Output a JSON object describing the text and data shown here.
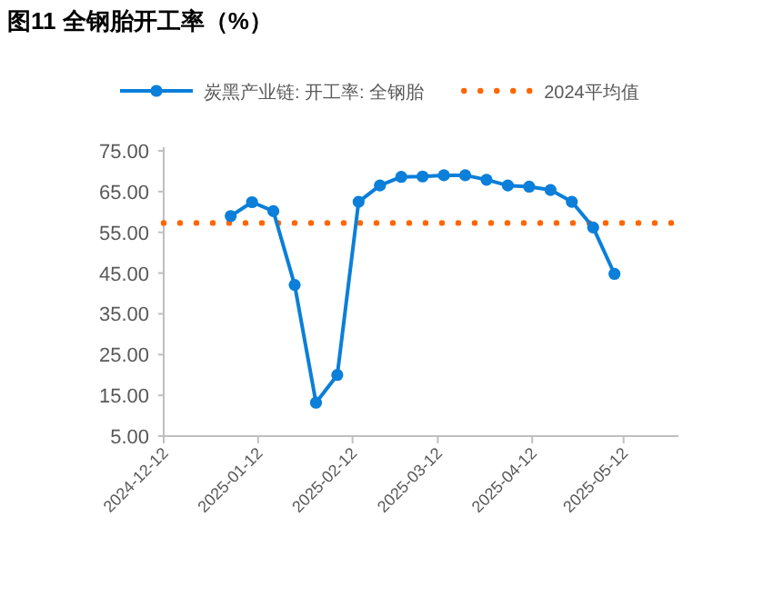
{
  "chart_data": {
    "type": "line",
    "title": "图11 全钢胎开工率（%）",
    "x": [
      "2025-01-03",
      "2025-01-10",
      "2025-01-17",
      "2025-01-24",
      "2025-01-31",
      "2025-02-07",
      "2025-02-14",
      "2025-02-21",
      "2025-02-28",
      "2025-03-07",
      "2025-03-14",
      "2025-03-21",
      "2025-03-28",
      "2025-04-04",
      "2025-04-11",
      "2025-04-18",
      "2025-04-25",
      "2025-05-02",
      "2025-05-09"
    ],
    "series": [
      {
        "name": "炭黑产业链: 开工率: 全钢胎",
        "color": "#0b7fd9",
        "values": [
          59.0,
          62.4,
          60.2,
          42.1,
          13.2,
          20.0,
          62.5,
          66.5,
          68.6,
          68.7,
          69.0,
          69.0,
          67.9,
          66.5,
          66.2,
          65.4,
          62.5,
          56.2,
          44.8
        ]
      }
    ],
    "ref_lines": [
      {
        "axis": "y",
        "value": 57.3,
        "label": "2024平均值",
        "color": "#ff6600",
        "line_style": "dotted"
      }
    ],
    "xlim": [
      "2024-12-12",
      "2025-05-30"
    ],
    "xticks": [
      "2024-12-12",
      "2025-01-12",
      "2025-02-12",
      "2025-03-12",
      "2025-04-12",
      "2025-05-12"
    ],
    "ylim": [
      5,
      75
    ],
    "yticks": [
      {
        "value": 5,
        "label": "5.00"
      },
      {
        "value": 15,
        "label": "15.00"
      },
      {
        "value": 25,
        "label": "25.00"
      },
      {
        "value": 35,
        "label": "35.00"
      },
      {
        "value": 45,
        "label": "45.00"
      },
      {
        "value": 55,
        "label": "55.00"
      },
      {
        "value": 65,
        "label": "65.00"
      },
      {
        "value": 75,
        "label": "75.00"
      }
    ],
    "marker": "circle",
    "line_style": "solid",
    "legend": "top",
    "grid": false
  }
}
